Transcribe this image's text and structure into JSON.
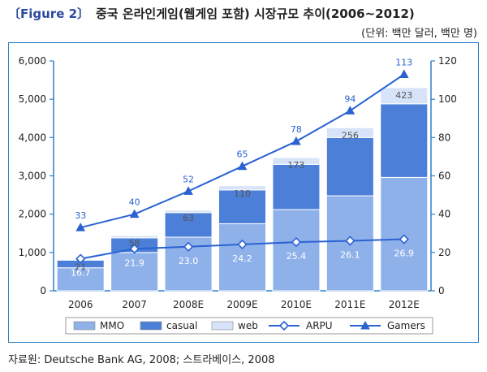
{
  "figure_label": "〔Figure 2〕",
  "title": "중국 온라인게임(웹게임 포함) 시장규모 추이(2006~2012)",
  "subtitle": "(단위: 백만 달러, 백만 명)",
  "source": "자료원: Deutsche Bank AG, 2008; 스트라베이스, 2008",
  "colors": {
    "mmo": "#8fb1ea",
    "casual": "#4c7fd8",
    "web": "#d6e3f8",
    "line": "#2a62d2",
    "axis": "#2e7fc6"
  },
  "chart_data": {
    "type": "bar",
    "stacked": true,
    "categories": [
      "2006",
      "2007",
      "2008E",
      "2009E",
      "2010E",
      "2011E",
      "2012E"
    ],
    "series": [
      {
        "name": "MMO",
        "type": "bar",
        "axis": "left",
        "values": [
          600,
          1000,
          1400,
          1750,
          2120,
          2480,
          2960
        ]
      },
      {
        "name": "casual",
        "type": "bar",
        "axis": "left",
        "values": [
          200,
          380,
          640,
          880,
          1180,
          1520,
          1920
        ]
      },
      {
        "name": "web",
        "type": "bar",
        "axis": "left",
        "values": [
          21,
          58,
          63,
          110,
          173,
          256,
          423
        ]
      },
      {
        "name": "ARPU",
        "type": "line",
        "axis": "right",
        "marker": "diamond",
        "values": [
          16.7,
          21.9,
          23.0,
          24.2,
          25.4,
          26.1,
          26.9
        ]
      },
      {
        "name": "Gamers",
        "type": "line",
        "axis": "right",
        "marker": "triangle",
        "values": [
          33,
          40,
          52,
          65,
          78,
          94,
          113
        ]
      }
    ],
    "web_labels": [
      "21",
      "58",
      "63",
      "110",
      "173",
      "256",
      "423"
    ],
    "arpu_labels": [
      "16.7",
      "21.9",
      "23.0",
      "24.2",
      "25.4",
      "26.1",
      "26.9"
    ],
    "gamers_labels": [
      "33",
      "40",
      "52",
      "65",
      "78",
      "94",
      "113"
    ],
    "y_left": {
      "min": 0,
      "max": 6000,
      "ticks": [
        "0",
        "1,000",
        "2,000",
        "3,000",
        "4,000",
        "5,000",
        "6,000"
      ]
    },
    "y_right": {
      "min": 0,
      "max": 120,
      "ticks": [
        "0",
        "20",
        "40",
        "60",
        "80",
        "100",
        "120"
      ]
    },
    "legend": [
      "MMO",
      "casual",
      "web",
      "ARPU",
      "Gamers"
    ],
    "legend_position": "bottom",
    "grid": false
  }
}
